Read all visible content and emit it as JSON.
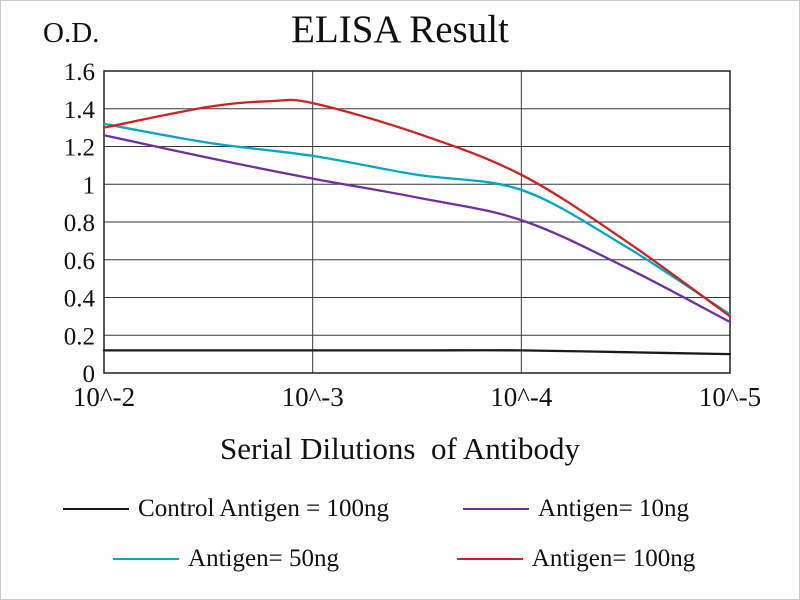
{
  "chart_data": {
    "type": "line",
    "title": "ELISA Result",
    "ylabel": "O.D.",
    "xlabel": "Serial Dilutions  of Antibody",
    "x_tick_labels": [
      "10^-2",
      "10^-3",
      "10^-4",
      "10^-5"
    ],
    "y_ticks": [
      0,
      0.2,
      0.4,
      0.6,
      0.8,
      1,
      1.2,
      1.4,
      1.6
    ],
    "ylim": [
      0,
      1.6
    ],
    "grid": true,
    "legend_position": "bottom",
    "series": [
      {
        "name": "Control Antigen = 100ng",
        "color": "#1a1a1a",
        "points": [
          [
            0,
            0.12
          ],
          [
            0.5,
            0.12
          ],
          [
            1,
            0.12
          ],
          [
            1.5,
            0.12
          ],
          [
            2,
            0.12
          ],
          [
            2.5,
            0.11
          ],
          [
            3,
            0.1
          ]
        ]
      },
      {
        "name": "Antigen= 10ng",
        "color": "#7030a0",
        "points": [
          [
            0,
            1.26
          ],
          [
            0.5,
            1.14
          ],
          [
            1,
            1.03
          ],
          [
            1.5,
            0.93
          ],
          [
            2,
            0.81
          ],
          [
            2.5,
            0.56
          ],
          [
            3,
            0.27
          ]
        ]
      },
      {
        "name": "Antigen= 50ng",
        "color": "#00a6c4",
        "points": [
          [
            0,
            1.32
          ],
          [
            0.5,
            1.22
          ],
          [
            1,
            1.15
          ],
          [
            1.5,
            1.05
          ],
          [
            2,
            0.97
          ],
          [
            2.5,
            0.67
          ],
          [
            3,
            0.31
          ]
        ]
      },
      {
        "name": "Antigen= 100ng",
        "color": "#cc2222",
        "points": [
          [
            0,
            1.3
          ],
          [
            0.5,
            1.41
          ],
          [
            0.8,
            1.44
          ],
          [
            1,
            1.43
          ],
          [
            1.5,
            1.27
          ],
          [
            2,
            1.05
          ],
          [
            2.5,
            0.7
          ],
          [
            3,
            0.3
          ]
        ]
      }
    ]
  }
}
